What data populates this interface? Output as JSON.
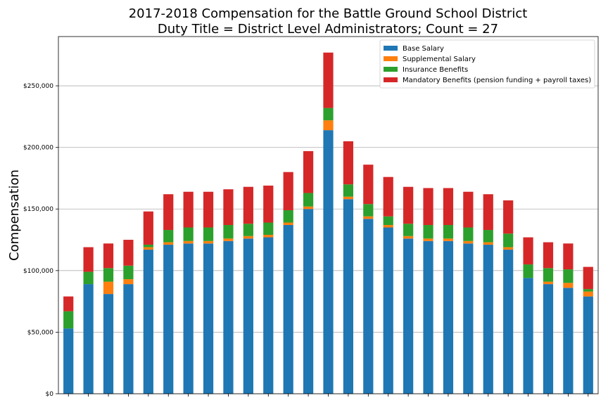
{
  "chart_data": {
    "type": "bar",
    "stacked": true,
    "title": "2017-2018 Compensation for the Battle Ground School District",
    "subtitle": "Duty Title = District Level Administrators; Count = 27",
    "xlabel": "",
    "ylabel": "Compensation",
    "ylim": [
      0,
      290000
    ],
    "yticks": [
      0,
      50000,
      100000,
      150000,
      200000,
      250000
    ],
    "ytick_labels": [
      "$0",
      "$50,000",
      "$100,000",
      "$150,000",
      "$200,000",
      "$250,000"
    ],
    "grid": "horizontal",
    "legend_position": "top-right",
    "series": [
      {
        "name": "Base Salary",
        "color": "#1f77b4",
        "values": [
          53000,
          89000,
          81000,
          89000,
          117000,
          121000,
          122000,
          122000,
          124000,
          126000,
          127000,
          137000,
          150000,
          214000,
          158000,
          142000,
          135000,
          126000,
          124000,
          124000,
          122000,
          121000,
          117000,
          94000,
          89000,
          86000,
          79000
        ]
      },
      {
        "name": "Supplemental Salary",
        "color": "#ff7f0e",
        "values": [
          0,
          0,
          10000,
          4000,
          2000,
          2000,
          2000,
          2000,
          2000,
          2000,
          2000,
          2000,
          2000,
          8000,
          2000,
          2000,
          2000,
          2000,
          2000,
          2000,
          2000,
          2000,
          2000,
          0,
          2000,
          4000,
          4000
        ]
      },
      {
        "name": "Insurance Benefits",
        "color": "#2ca02c",
        "values": [
          14000,
          10000,
          11000,
          11000,
          2000,
          10000,
          11000,
          11000,
          11000,
          10000,
          10000,
          10000,
          11000,
          10000,
          10000,
          10000,
          7000,
          10000,
          11000,
          11000,
          11000,
          10000,
          11000,
          11000,
          11000,
          11000,
          2000
        ]
      },
      {
        "name": "Mandatory Benefits (pension funding + payroll taxes)",
        "color": "#d62728",
        "values": [
          12000,
          20000,
          20000,
          21000,
          27000,
          29000,
          29000,
          29000,
          29000,
          30000,
          30000,
          31000,
          34000,
          45000,
          35000,
          32000,
          32000,
          30000,
          30000,
          30000,
          29000,
          29000,
          27000,
          22000,
          21000,
          21000,
          18000
        ]
      }
    ]
  }
}
